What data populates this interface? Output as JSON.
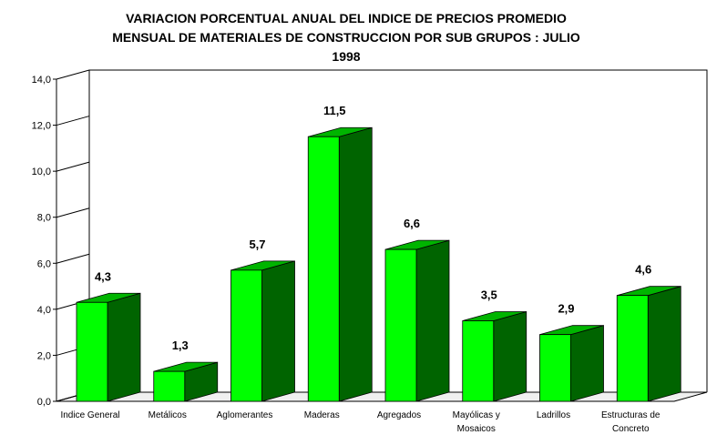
{
  "chart_data": {
    "type": "bar",
    "title_lines": [
      "VARIACION PORCENTUAL ANUAL DEL INDICE DE PRECIOS PROMEDIO",
      "MENSUAL DE MATERIALES DE CONSTRUCCION POR SUB GRUPOS : JULIO",
      "1998"
    ],
    "categories": [
      [
        "Indice General"
      ],
      [
        "Metálicos"
      ],
      [
        "Aglomerantes"
      ],
      [
        "Maderas"
      ],
      [
        "Agregados"
      ],
      [
        "Mayólicas y",
        "Mosaicos"
      ],
      [
        "Ladrillos"
      ],
      [
        "Estructuras de",
        "Concreto"
      ]
    ],
    "values": [
      4.3,
      1.3,
      5.7,
      11.5,
      6.6,
      3.5,
      2.9,
      4.6
    ],
    "value_labels": [
      "4,3",
      "1,3",
      "5,7",
      "11,5",
      "6,6",
      "3,5",
      "2,9",
      "4,6"
    ],
    "ylim": [
      0,
      14
    ],
    "yticks": [
      0,
      2,
      4,
      6,
      8,
      10,
      12,
      14
    ],
    "ytick_labels": [
      "0,0",
      "2,0",
      "4,0",
      "6,0",
      "8,0",
      "10,0",
      "12,0",
      "14,0"
    ],
    "xlabel": "",
    "ylabel": "",
    "grid": false,
    "style": "3d",
    "colors": {
      "bar_front": "#00ff00",
      "bar_side": "#006400",
      "bar_top": "#00b400",
      "floor": "#f0f0f0",
      "axis": "#000000"
    }
  }
}
